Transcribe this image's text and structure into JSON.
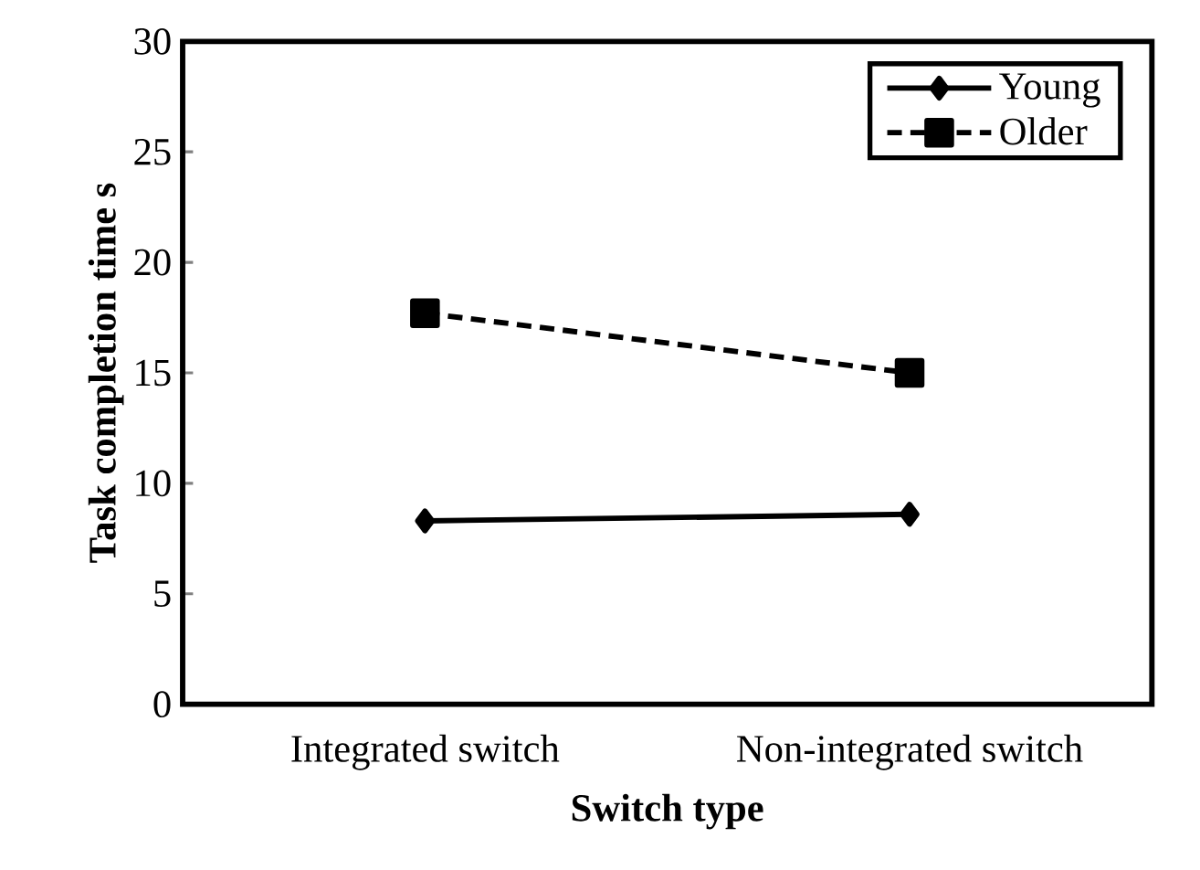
{
  "chart_data": {
    "type": "line",
    "xlabel": "Switch type",
    "ylabel": "Task completion time s",
    "categories": [
      "Integrated switch",
      "Non-integrated switch"
    ],
    "series": [
      {
        "name": "Young",
        "color": "#000000",
        "marker": "diamond",
        "line_style": "solid",
        "values": [
          8.3,
          8.6
        ]
      },
      {
        "name": "Older",
        "color": "#000000",
        "marker": "square",
        "line_style": "dashed",
        "values": [
          17.7,
          15.0
        ]
      }
    ],
    "ylim": [
      0,
      30
    ],
    "yticks": [
      0,
      5,
      10,
      15,
      20,
      25,
      30
    ],
    "grid": false,
    "legend": "top right"
  }
}
